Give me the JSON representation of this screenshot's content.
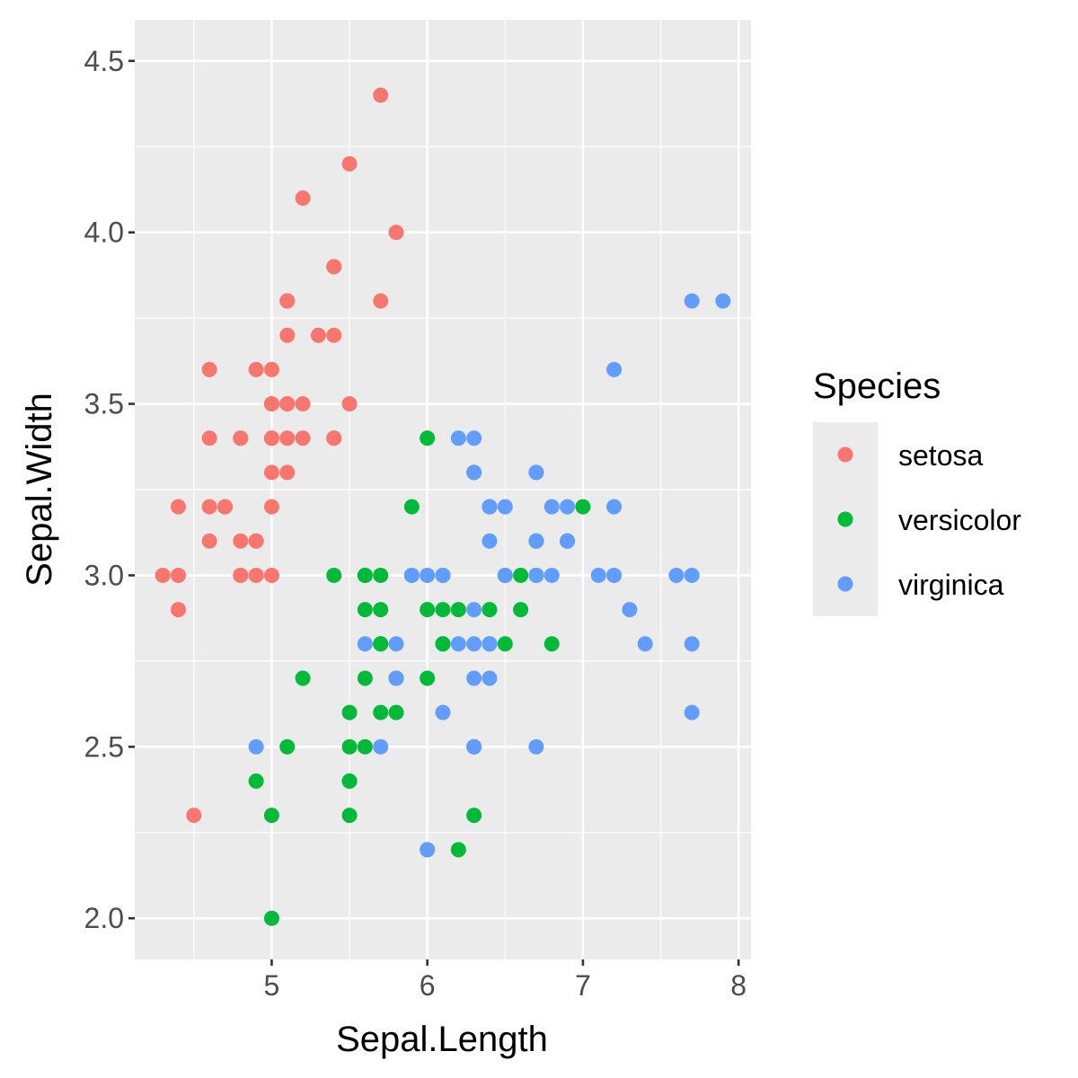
{
  "chart_data": {
    "type": "scatter",
    "title": "",
    "xlabel": "Sepal.Length",
    "ylabel": "Sepal.Width",
    "xlim": [
      4.12,
      8.08
    ],
    "ylim": [
      1.88,
      4.62
    ],
    "xticks": [
      5,
      6,
      7,
      8
    ],
    "xtick_labels": [
      "5",
      "6",
      "7",
      "8"
    ],
    "yticks": [
      2.0,
      2.5,
      3.0,
      3.5,
      4.0,
      4.5
    ],
    "ytick_labels": [
      "2.0",
      "2.5",
      "3.0",
      "3.5",
      "4.0",
      "4.5"
    ],
    "grid": true,
    "legend": {
      "title": "Species",
      "placement": "right"
    },
    "series": [
      {
        "name": "setosa",
        "color": "#F8766D",
        "points": [
          [
            5.1,
            3.5
          ],
          [
            4.9,
            3.0
          ],
          [
            4.7,
            3.2
          ],
          [
            4.6,
            3.1
          ],
          [
            5.0,
            3.6
          ],
          [
            5.4,
            3.9
          ],
          [
            4.6,
            3.4
          ],
          [
            5.0,
            3.4
          ],
          [
            4.4,
            2.9
          ],
          [
            4.9,
            3.1
          ],
          [
            5.4,
            3.7
          ],
          [
            4.8,
            3.4
          ],
          [
            4.8,
            3.0
          ],
          [
            4.3,
            3.0
          ],
          [
            5.8,
            4.0
          ],
          [
            5.7,
            4.4
          ],
          [
            5.4,
            3.9
          ],
          [
            5.1,
            3.5
          ],
          [
            5.7,
            3.8
          ],
          [
            5.1,
            3.8
          ],
          [
            5.4,
            3.4
          ],
          [
            5.1,
            3.7
          ],
          [
            4.6,
            3.6
          ],
          [
            5.1,
            3.3
          ],
          [
            4.8,
            3.4
          ],
          [
            5.0,
            3.0
          ],
          [
            5.0,
            3.4
          ],
          [
            5.2,
            3.5
          ],
          [
            5.2,
            3.4
          ],
          [
            4.7,
            3.2
          ],
          [
            4.8,
            3.1
          ],
          [
            5.4,
            3.4
          ],
          [
            5.2,
            4.1
          ],
          [
            5.5,
            4.2
          ],
          [
            4.9,
            3.1
          ],
          [
            5.0,
            3.2
          ],
          [
            5.5,
            3.5
          ],
          [
            4.9,
            3.6
          ],
          [
            4.4,
            3.0
          ],
          [
            5.1,
            3.4
          ],
          [
            5.0,
            3.5
          ],
          [
            4.5,
            2.3
          ],
          [
            4.4,
            3.2
          ],
          [
            5.0,
            3.5
          ],
          [
            5.1,
            3.8
          ],
          [
            4.8,
            3.0
          ],
          [
            5.1,
            3.8
          ],
          [
            4.6,
            3.2
          ],
          [
            5.3,
            3.7
          ],
          [
            5.0,
            3.3
          ]
        ]
      },
      {
        "name": "versicolor",
        "color": "#00BA38",
        "points": [
          [
            7.0,
            3.2
          ],
          [
            6.4,
            3.2
          ],
          [
            6.9,
            3.1
          ],
          [
            5.5,
            2.3
          ],
          [
            6.5,
            2.8
          ],
          [
            5.7,
            2.8
          ],
          [
            6.3,
            3.3
          ],
          [
            4.9,
            2.4
          ],
          [
            6.6,
            2.9
          ],
          [
            5.2,
            2.7
          ],
          [
            5.0,
            2.0
          ],
          [
            5.9,
            3.0
          ],
          [
            6.0,
            2.2
          ],
          [
            6.1,
            2.9
          ],
          [
            5.6,
            2.9
          ],
          [
            6.7,
            3.1
          ],
          [
            5.6,
            3.0
          ],
          [
            5.8,
            2.7
          ],
          [
            6.2,
            2.2
          ],
          [
            5.6,
            2.5
          ],
          [
            5.9,
            3.2
          ],
          [
            6.1,
            2.8
          ],
          [
            6.3,
            2.5
          ],
          [
            6.1,
            2.8
          ],
          [
            6.4,
            2.9
          ],
          [
            6.6,
            3.0
          ],
          [
            6.8,
            2.8
          ],
          [
            6.7,
            3.0
          ],
          [
            6.0,
            2.9
          ],
          [
            5.7,
            2.6
          ],
          [
            5.5,
            2.4
          ],
          [
            5.5,
            2.4
          ],
          [
            5.8,
            2.7
          ],
          [
            6.0,
            2.7
          ],
          [
            5.4,
            3.0
          ],
          [
            6.0,
            3.4
          ],
          [
            6.7,
            3.1
          ],
          [
            6.3,
            2.3
          ],
          [
            5.6,
            3.0
          ],
          [
            5.5,
            2.5
          ],
          [
            5.5,
            2.6
          ],
          [
            6.1,
            3.0
          ],
          [
            5.8,
            2.6
          ],
          [
            5.0,
            2.3
          ],
          [
            5.6,
            2.7
          ],
          [
            5.7,
            3.0
          ],
          [
            5.7,
            2.9
          ],
          [
            6.2,
            2.9
          ],
          [
            5.1,
            2.5
          ],
          [
            5.7,
            2.8
          ]
        ]
      },
      {
        "name": "virginica",
        "color": "#619CFF",
        "points": [
          [
            6.3,
            3.3
          ],
          [
            5.8,
            2.7
          ],
          [
            7.1,
            3.0
          ],
          [
            6.3,
            2.9
          ],
          [
            6.5,
            3.0
          ],
          [
            7.6,
            3.0
          ],
          [
            4.9,
            2.5
          ],
          [
            7.3,
            2.9
          ],
          [
            6.7,
            2.5
          ],
          [
            7.2,
            3.6
          ],
          [
            6.5,
            3.2
          ],
          [
            6.4,
            2.7
          ],
          [
            6.8,
            3.0
          ],
          [
            5.7,
            2.5
          ],
          [
            5.8,
            2.8
          ],
          [
            6.4,
            3.2
          ],
          [
            6.5,
            3.0
          ],
          [
            7.7,
            3.8
          ],
          [
            7.7,
            2.6
          ],
          [
            6.0,
            2.2
          ],
          [
            6.9,
            3.2
          ],
          [
            5.6,
            2.8
          ],
          [
            7.7,
            2.8
          ],
          [
            6.3,
            2.7
          ],
          [
            6.7,
            3.3
          ],
          [
            7.2,
            3.2
          ],
          [
            6.2,
            2.8
          ],
          [
            6.1,
            3.0
          ],
          [
            6.4,
            2.8
          ],
          [
            7.2,
            3.0
          ],
          [
            7.4,
            2.8
          ],
          [
            7.9,
            3.8
          ],
          [
            6.4,
            2.8
          ],
          [
            6.3,
            2.8
          ],
          [
            6.1,
            2.6
          ],
          [
            7.7,
            3.0
          ],
          [
            6.3,
            3.4
          ],
          [
            6.4,
            3.1
          ],
          [
            6.0,
            3.0
          ],
          [
            6.9,
            3.1
          ],
          [
            6.7,
            3.1
          ],
          [
            6.9,
            3.1
          ],
          [
            5.8,
            2.7
          ],
          [
            6.8,
            3.2
          ],
          [
            6.7,
            3.3
          ],
          [
            6.7,
            3.0
          ],
          [
            6.3,
            2.5
          ],
          [
            6.5,
            3.0
          ],
          [
            6.2,
            3.4
          ],
          [
            5.9,
            3.0
          ]
        ]
      }
    ]
  }
}
